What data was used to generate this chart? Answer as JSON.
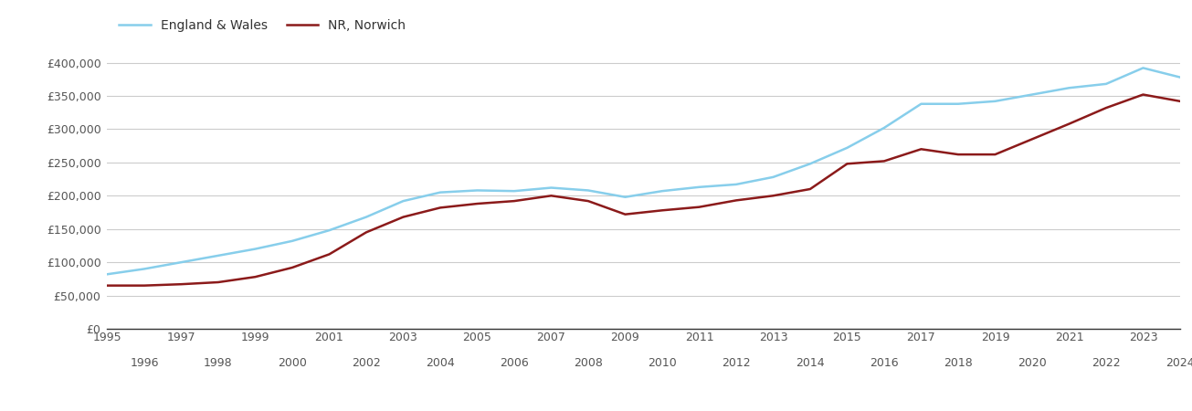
{
  "years": [
    1995,
    1996,
    1997,
    1998,
    1999,
    2000,
    2001,
    2002,
    2003,
    2004,
    2005,
    2006,
    2007,
    2008,
    2009,
    2010,
    2011,
    2012,
    2013,
    2014,
    2015,
    2016,
    2017,
    2018,
    2019,
    2020,
    2021,
    2022,
    2023,
    2024
  ],
  "norwich": [
    65000,
    65000,
    67000,
    70000,
    78000,
    92000,
    112000,
    145000,
    168000,
    182000,
    188000,
    192000,
    200000,
    192000,
    172000,
    178000,
    183000,
    193000,
    200000,
    210000,
    248000,
    252000,
    270000,
    262000,
    262000,
    285000,
    308000,
    332000,
    352000,
    342000
  ],
  "england_wales": [
    82000,
    90000,
    100000,
    110000,
    120000,
    132000,
    148000,
    168000,
    192000,
    205000,
    208000,
    207000,
    212000,
    208000,
    198000,
    207000,
    213000,
    217000,
    228000,
    248000,
    272000,
    302000,
    338000,
    338000,
    342000,
    352000,
    362000,
    368000,
    392000,
    378000
  ],
  "norwich_color": "#8B1A1A",
  "england_wales_color": "#87CEEB",
  "background_color": "#ffffff",
  "grid_color": "#cccccc",
  "ylim": [
    0,
    420000
  ],
  "yticks": [
    0,
    50000,
    100000,
    150000,
    200000,
    250000,
    300000,
    350000,
    400000
  ],
  "odd_years": [
    1995,
    1997,
    1999,
    2001,
    2003,
    2005,
    2007,
    2009,
    2011,
    2013,
    2015,
    2017,
    2019,
    2021,
    2023
  ],
  "even_years": [
    1996,
    1998,
    2000,
    2002,
    2004,
    2006,
    2008,
    2010,
    2012,
    2014,
    2016,
    2018,
    2020,
    2022,
    2024
  ],
  "legend_labels": [
    "NR, Norwich",
    "England & Wales"
  ],
  "line_width": 1.8,
  "tick_fontsize": 9,
  "tick_color": "#555555"
}
